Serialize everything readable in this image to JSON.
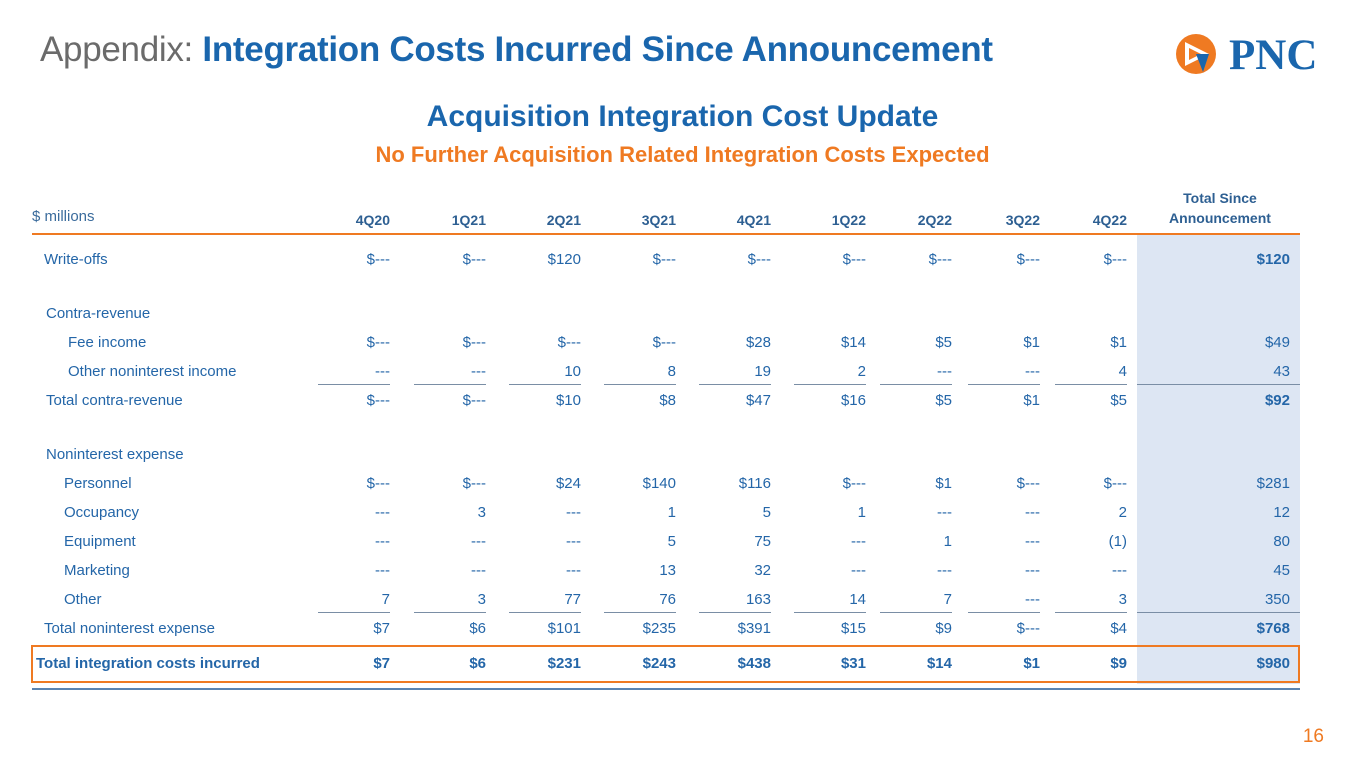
{
  "header": {
    "prefix": "Appendix:",
    "title": "Integration Costs Incurred Since Announcement"
  },
  "logo": {
    "text": "PNC"
  },
  "subtitle": "Acquisition Integration Cost Update",
  "subtitle2": "No Further Acquisition Related Integration Costs Expected",
  "units": "$ millions",
  "columns": [
    "4Q20",
    "1Q21",
    "2Q21",
    "3Q21",
    "4Q21",
    "1Q22",
    "2Q22",
    "3Q22",
    "4Q22"
  ],
  "total_col_line1": "Total Since",
  "total_col_line2": "Announcement",
  "rows": [
    {
      "label": "Write-offs",
      "values": [
        "$---",
        "$---",
        "$120",
        "$---",
        "$---",
        "$---",
        "$---",
        "$---",
        "$---"
      ],
      "total": "$120"
    },
    {
      "label": "Contra-revenue",
      "values": [
        "",
        "",
        "",
        "",
        "",
        "",
        "",
        "",
        ""
      ],
      "total": ""
    },
    {
      "label": "Fee income",
      "values": [
        "$---",
        "$---",
        "$---",
        "$---",
        "$28",
        "$14",
        "$5",
        "$1",
        "$1"
      ],
      "total": "$49"
    },
    {
      "label": "Other noninterest income",
      "values": [
        "---",
        "---",
        "10",
        "8",
        "19",
        "2",
        "---",
        "---",
        "4"
      ],
      "total": "43"
    },
    {
      "label": "Total contra-revenue",
      "values": [
        "$---",
        "$---",
        "$10",
        "$8",
        "$47",
        "$16",
        "$5",
        "$1",
        "$5"
      ],
      "total": "$92"
    },
    {
      "label": "Noninterest expense",
      "values": [
        "",
        "",
        "",
        "",
        "",
        "",
        "",
        "",
        ""
      ],
      "total": ""
    },
    {
      "label": "Personnel",
      "values": [
        "$---",
        "$---",
        "$24",
        "$140",
        "$116",
        "$---",
        "$1",
        "$---",
        "$---"
      ],
      "total": "$281"
    },
    {
      "label": "Occupancy",
      "values": [
        "---",
        "3",
        "---",
        "1",
        "5",
        "1",
        "---",
        "---",
        "2"
      ],
      "total": "12"
    },
    {
      "label": "Equipment",
      "values": [
        "---",
        "---",
        "---",
        "5",
        "75",
        "---",
        "1",
        "---",
        "(1)"
      ],
      "total": "80"
    },
    {
      "label": "Marketing",
      "values": [
        "---",
        "---",
        "---",
        "13",
        "32",
        "---",
        "---",
        "---",
        "---"
      ],
      "total": "45"
    },
    {
      "label": "Other",
      "values": [
        "7",
        "3",
        "77",
        "76",
        "163",
        "14",
        "7",
        "---",
        "3"
      ],
      "total": "350"
    },
    {
      "label": "Total noninterest expense",
      "values": [
        "$7",
        "$6",
        "$101",
        "$235",
        "$391",
        "$15",
        "$9",
        "$---",
        "$4"
      ],
      "total": "$768"
    },
    {
      "label": "Total integration costs incurred",
      "values": [
        "$7",
        "$6",
        "$231",
        "$243",
        "$438",
        "$31",
        "$14",
        "$1",
        "$9"
      ],
      "total": "$980"
    }
  ],
  "page_number": "16",
  "colors": {
    "blue": "#1a66ad",
    "orange": "#ef7a22",
    "light_blue_bg": "#dde6f3"
  }
}
